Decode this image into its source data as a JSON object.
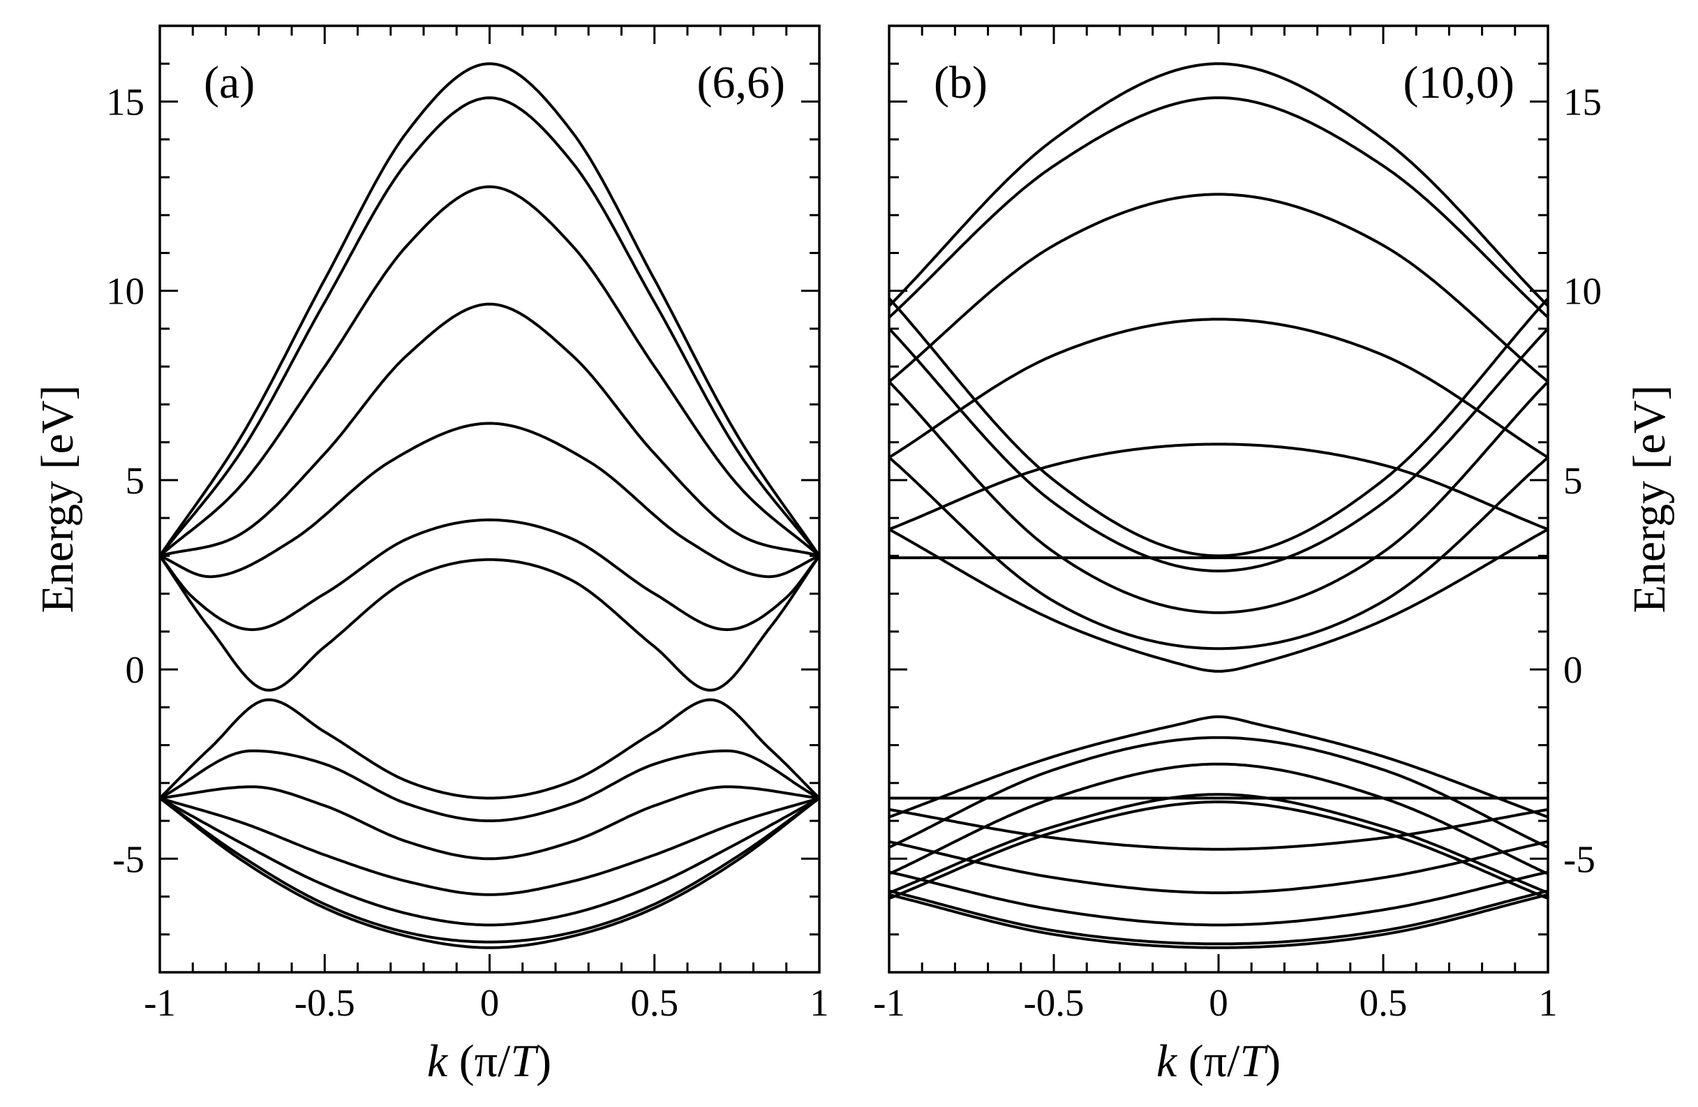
{
  "chart_data": [
    {
      "type": "line",
      "panel_label": "(a)",
      "title": "(6,6)",
      "xlabel_italic": "k",
      "xlabel_rest": " (π/",
      "xlabel_T": "T",
      "xlabel_close": ")",
      "ylabel": "Energy [eV]",
      "xlim": [
        -1,
        1
      ],
      "ylim": [
        -8,
        17
      ],
      "x_ticks": [
        -1,
        -0.5,
        0,
        0.5,
        1
      ],
      "x_tick_labels": [
        "-1",
        "-0.5",
        "0",
        "0.5",
        "1"
      ],
      "y_ticks": [
        -5,
        0,
        5,
        10,
        15
      ],
      "y_tick_labels": [
        "-5",
        "0",
        "5",
        "10",
        "15"
      ],
      "series": [
        {
          "name": "band-1",
          "x": [
            -1,
            -0.75,
            -0.5,
            -0.25,
            0,
            0.25,
            0.5,
            0.75,
            1
          ],
          "y": [
            3.0,
            6.2,
            10.3,
            14.2,
            16.0,
            14.2,
            10.3,
            6.2,
            3.0
          ]
        },
        {
          "name": "band-2",
          "x": [
            -1,
            -0.75,
            -0.5,
            -0.25,
            0,
            0.25,
            0.5,
            0.75,
            1
          ],
          "y": [
            3.0,
            5.8,
            9.7,
            13.4,
            15.1,
            13.4,
            9.7,
            5.8,
            3.0
          ]
        },
        {
          "name": "band-3",
          "x": [
            -1,
            -0.75,
            -0.5,
            -0.25,
            0,
            0.25,
            0.5,
            0.75,
            1
          ],
          "y": [
            3.0,
            4.9,
            8.0,
            11.2,
            12.75,
            11.2,
            8.0,
            4.9,
            3.0
          ]
        },
        {
          "name": "band-4",
          "x": [
            -1,
            -0.75,
            -0.5,
            -0.25,
            0,
            0.25,
            0.5,
            0.75,
            1
          ],
          "y": [
            3.0,
            3.6,
            5.7,
            8.3,
            9.65,
            8.3,
            5.7,
            3.6,
            3.0
          ]
        },
        {
          "name": "band-5",
          "x": [
            -1,
            -0.85,
            -0.6,
            -0.3,
            0,
            0.3,
            0.6,
            0.85,
            1
          ],
          "y": [
            3.0,
            2.45,
            3.4,
            5.5,
            6.5,
            5.5,
            3.4,
            2.45,
            3.0
          ]
        },
        {
          "name": "band-6",
          "x": [
            -1,
            -0.9,
            -0.72,
            -0.5,
            -0.25,
            0,
            0.25,
            0.5,
            0.72,
            0.9,
            1
          ],
          "y": [
            3.0,
            1.9,
            1.05,
            2.0,
            3.45,
            3.95,
            3.45,
            2.0,
            1.05,
            1.9,
            3.0
          ]
        },
        {
          "name": "band-7",
          "x": [
            -1,
            -0.85,
            -0.67,
            -0.5,
            -0.25,
            0,
            0.25,
            0.5,
            0.67,
            0.85,
            1
          ],
          "y": [
            3.0,
            1.1,
            -0.55,
            0.6,
            2.35,
            2.9,
            2.35,
            0.6,
            -0.55,
            1.1,
            3.0
          ]
        },
        {
          "name": "band-8",
          "x": [
            -1,
            -0.85,
            -0.67,
            -0.5,
            -0.25,
            0,
            0.25,
            0.5,
            0.67,
            0.85,
            1
          ],
          "y": [
            -3.4,
            -2.1,
            -0.8,
            -1.65,
            -2.95,
            -3.4,
            -2.95,
            -1.65,
            -0.8,
            -2.1,
            -3.4
          ]
        },
        {
          "name": "band-9",
          "x": [
            -1,
            -0.72,
            -0.5,
            -0.25,
            0,
            0.25,
            0.5,
            0.72,
            1
          ],
          "y": [
            -3.4,
            -2.15,
            -2.5,
            -3.55,
            -4.0,
            -3.55,
            -2.5,
            -2.15,
            -3.4
          ]
        },
        {
          "name": "band-10",
          "x": [
            -1,
            -0.72,
            -0.5,
            -0.25,
            0,
            0.25,
            0.5,
            0.72,
            1
          ],
          "y": [
            -3.4,
            -3.1,
            -3.6,
            -4.55,
            -5.0,
            -4.55,
            -3.6,
            -3.1,
            -3.4
          ]
        },
        {
          "name": "band-11",
          "x": [
            -1,
            -0.75,
            -0.5,
            -0.25,
            0,
            0.25,
            0.5,
            0.75,
            1
          ],
          "y": [
            -3.4,
            -4.05,
            -4.9,
            -5.6,
            -5.95,
            -5.6,
            -4.9,
            -4.05,
            -3.4
          ]
        },
        {
          "name": "band-12",
          "x": [
            -1,
            -0.75,
            -0.5,
            -0.25,
            0,
            0.25,
            0.5,
            0.75,
            1
          ],
          "y": [
            -3.4,
            -4.6,
            -5.7,
            -6.45,
            -6.75,
            -6.45,
            -5.7,
            -4.6,
            -3.4
          ]
        },
        {
          "name": "band-13",
          "x": [
            -1,
            -0.75,
            -0.5,
            -0.25,
            0,
            0.25,
            0.5,
            0.75,
            1
          ],
          "y": [
            -3.4,
            -4.95,
            -6.2,
            -6.95,
            -7.2,
            -6.95,
            -6.2,
            -4.95,
            -3.4
          ]
        },
        {
          "name": "band-14",
          "x": [
            -1,
            -0.75,
            -0.5,
            -0.25,
            0,
            0.25,
            0.5,
            0.75,
            1
          ],
          "y": [
            -3.4,
            -5.05,
            -6.3,
            -7.05,
            -7.35,
            -7.05,
            -6.3,
            -5.05,
            -3.4
          ]
        }
      ]
    },
    {
      "type": "line",
      "panel_label": "(b)",
      "title": "(10,0)",
      "xlabel_italic": "k",
      "xlabel_rest": " (π/",
      "xlabel_T": "T",
      "xlabel_close": ")",
      "ylabel": "Energy [eV]",
      "xlim": [
        -1,
        1
      ],
      "ylim": [
        -8,
        17
      ],
      "x_ticks": [
        -1,
        -0.5,
        0,
        0.5,
        1
      ],
      "x_tick_labels": [
        "-1",
        "-0.5",
        "0",
        "0.5",
        "1"
      ],
      "y_ticks": [
        -5,
        0,
        5,
        10,
        15
      ],
      "y_tick_labels": [
        "-5",
        "0",
        "5",
        "10",
        "15"
      ],
      "series": [
        {
          "name": "band-1",
          "x": [
            -1,
            -0.5,
            0,
            0.5,
            1
          ],
          "y": [
            9.6,
            14.0,
            16.0,
            14.0,
            9.6
          ]
        },
        {
          "name": "band-2",
          "x": [
            -1,
            -0.5,
            0,
            0.5,
            1
          ],
          "y": [
            9.3,
            13.3,
            15.1,
            13.3,
            9.3
          ]
        },
        {
          "name": "band-3",
          "x": [
            -1,
            -0.5,
            0,
            0.5,
            1
          ],
          "y": [
            7.6,
            11.2,
            12.55,
            11.2,
            7.6
          ]
        },
        {
          "name": "band-4",
          "x": [
            -1,
            -0.5,
            0,
            0.5,
            1
          ],
          "y": [
            5.6,
            8.3,
            9.25,
            8.3,
            5.6
          ]
        },
        {
          "name": "band-5",
          "x": [
            -1,
            -0.5,
            0,
            0.5,
            1
          ],
          "y": [
            3.7,
            5.4,
            5.95,
            5.4,
            3.7
          ]
        },
        {
          "name": "band-flat-upper",
          "x": [
            -1,
            1
          ],
          "y": [
            2.95,
            2.95
          ]
        },
        {
          "name": "band-6",
          "x": [
            -1,
            -0.5,
            0,
            0.5,
            1
          ],
          "y": [
            9.8,
            5.0,
            3.0,
            5.0,
            9.8
          ]
        },
        {
          "name": "band-7",
          "x": [
            -1,
            -0.5,
            0,
            0.5,
            1
          ],
          "y": [
            9.0,
            4.4,
            2.6,
            4.4,
            9.0
          ]
        },
        {
          "name": "band-8",
          "x": [
            -1,
            -0.5,
            0,
            0.5,
            1
          ],
          "y": [
            7.6,
            3.1,
            1.5,
            3.1,
            7.6
          ]
        },
        {
          "name": "band-9",
          "x": [
            -1,
            -0.5,
            0,
            0.5,
            1
          ],
          "y": [
            5.6,
            1.8,
            0.55,
            1.8,
            5.6
          ]
        },
        {
          "name": "band-10",
          "x": [
            -1,
            -0.5,
            -0.12,
            0,
            0.12,
            0.5,
            1
          ],
          "y": [
            3.7,
            1.3,
            0.15,
            -0.05,
            0.15,
            1.3,
            3.7
          ]
        },
        {
          "name": "band-11",
          "x": [
            -1,
            -0.5,
            -0.12,
            0,
            0.12,
            0.5,
            1
          ],
          "y": [
            -3.9,
            -2.3,
            -1.45,
            -1.25,
            -1.45,
            -2.3,
            -3.9
          ]
        },
        {
          "name": "band-12",
          "x": [
            -1,
            -0.5,
            0,
            0.5,
            1
          ],
          "y": [
            -4.7,
            -2.65,
            -1.8,
            -2.65,
            -4.7
          ]
        },
        {
          "name": "band-13",
          "x": [
            -1,
            -0.5,
            0,
            0.5,
            1
          ],
          "y": [
            -5.4,
            -3.4,
            -2.5,
            -3.4,
            -5.4
          ]
        },
        {
          "name": "band-14",
          "x": [
            -1,
            -0.5,
            0,
            0.5,
            1
          ],
          "y": [
            -5.9,
            -4.15,
            -3.3,
            -4.15,
            -5.9
          ]
        },
        {
          "name": "band-15",
          "x": [
            -1,
            -0.5,
            0,
            0.5,
            1
          ],
          "y": [
            -6.05,
            -4.3,
            -3.5,
            -4.3,
            -6.05
          ]
        },
        {
          "name": "band-flat-lower",
          "x": [
            -1,
            1
          ],
          "y": [
            -3.4,
            -3.4
          ]
        },
        {
          "name": "band-16",
          "x": [
            -1,
            -0.5,
            0,
            0.5,
            1
          ],
          "y": [
            -3.7,
            -4.45,
            -4.75,
            -4.45,
            -3.7
          ]
        },
        {
          "name": "band-17",
          "x": [
            -1,
            -0.5,
            0,
            0.5,
            1
          ],
          "y": [
            -4.55,
            -5.5,
            -5.9,
            -5.5,
            -4.55
          ]
        },
        {
          "name": "band-18",
          "x": [
            -1,
            -0.5,
            0,
            0.5,
            1
          ],
          "y": [
            -5.35,
            -6.35,
            -6.75,
            -6.35,
            -5.35
          ]
        },
        {
          "name": "band-19",
          "x": [
            -1,
            -0.5,
            0,
            0.5,
            1
          ],
          "y": [
            -5.85,
            -6.9,
            -7.25,
            -6.9,
            -5.85
          ]
        },
        {
          "name": "band-20",
          "x": [
            -1,
            -0.5,
            0,
            0.5,
            1
          ],
          "y": [
            -5.95,
            -7.0,
            -7.35,
            -7.0,
            -5.95
          ]
        }
      ]
    }
  ]
}
